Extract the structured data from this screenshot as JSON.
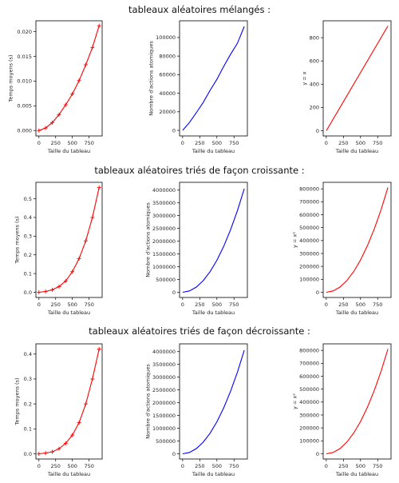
{
  "colors": {
    "red": "#ff0000",
    "blue": "#0000ff",
    "axis": "#000000",
    "text": "#222222"
  },
  "rows": [
    {
      "title": "tableaux aléatoires mélangés :"
    },
    {
      "title": "tableaux aléatoires triés de façon croissante :"
    },
    {
      "title": "tableaux aléatoires triés de façon décroissante :"
    }
  ],
  "chart_data": [
    {
      "type": "line",
      "row": 0,
      "col": 0,
      "xlabel": "Taille du tableau",
      "ylabel": "Temps moyens (s)",
      "xlim": [
        -45,
        945
      ],
      "ylim": [
        -0.0011,
        0.0222
      ],
      "xticks": [
        0,
        250,
        500,
        750
      ],
      "xticklabels": [
        "0",
        "250",
        "500",
        "750"
      ],
      "yticks": [
        0,
        0.005,
        0.01,
        0.015,
        0.02
      ],
      "yticklabels": [
        "0.000",
        "0.005",
        "0.010",
        "0.015",
        "0.020"
      ],
      "series": [
        {
          "color": "#ff0000",
          "marker": "+",
          "x": [
            0,
            100,
            200,
            300,
            400,
            500,
            600,
            700,
            800,
            900
          ],
          "y": [
            0.0,
            0.0005,
            0.0016,
            0.0032,
            0.0052,
            0.0074,
            0.0101,
            0.0133,
            0.0168,
            0.0212
          ]
        }
      ]
    },
    {
      "type": "line",
      "row": 0,
      "col": 1,
      "xlabel": "Taille du tableau",
      "ylabel": "Nombre d'actions atomiques",
      "xlim": [
        -45,
        945
      ],
      "ylim": [
        -6000,
        118000
      ],
      "xticks": [
        0,
        250,
        500,
        750
      ],
      "xticklabels": [
        "0",
        "250",
        "500",
        "750"
      ],
      "yticks": [
        0,
        20000,
        40000,
        60000,
        80000,
        100000
      ],
      "yticklabels": [
        "0",
        "20000",
        "40000",
        "60000",
        "80000",
        "100000"
      ],
      "series": [
        {
          "color": "#0000ff",
          "marker": "",
          "x": [
            0,
            100,
            200,
            300,
            400,
            500,
            600,
            700,
            800,
            900
          ],
          "y": [
            0,
            8500,
            19000,
            30000,
            43000,
            55000,
            69000,
            82000,
            94000,
            112000
          ]
        }
      ]
    },
    {
      "type": "line",
      "row": 0,
      "col": 2,
      "xlabel": "Taille du tableau",
      "ylabel": "y = x",
      "xlim": [
        -45,
        945
      ],
      "ylim": [
        -45,
        945
      ],
      "xticks": [
        0,
        250,
        500,
        750
      ],
      "xticklabels": [
        "0",
        "250",
        "500",
        "750"
      ],
      "yticks": [
        0,
        200,
        400,
        600,
        800
      ],
      "yticklabels": [
        "0",
        "200",
        "400",
        "600",
        "800"
      ],
      "series": [
        {
          "color": "#ff0000",
          "marker": "",
          "x": [
            0,
            900
          ],
          "y": [
            0,
            900
          ]
        }
      ]
    },
    {
      "type": "line",
      "row": 1,
      "col": 0,
      "xlabel": "Taille du tableau",
      "ylabel": "Temps moyens (s)",
      "xlim": [
        -45,
        945
      ],
      "ylim": [
        -0.028,
        0.588
      ],
      "xticks": [
        0,
        250,
        500,
        750
      ],
      "xticklabels": [
        "0",
        "250",
        "500",
        "750"
      ],
      "yticks": [
        0,
        0.1,
        0.2,
        0.3,
        0.4,
        0.5
      ],
      "yticklabels": [
        "0.0",
        "0.1",
        "0.2",
        "0.3",
        "0.4",
        "0.5"
      ],
      "series": [
        {
          "color": "#ff0000",
          "marker": "+",
          "x": [
            0,
            100,
            200,
            300,
            400,
            500,
            600,
            700,
            800,
            900
          ],
          "y": [
            0.0,
            0.004,
            0.013,
            0.03,
            0.06,
            0.11,
            0.18,
            0.275,
            0.4,
            0.56
          ]
        }
      ]
    },
    {
      "type": "line",
      "row": 1,
      "col": 1,
      "xlabel": "Taille du tableau",
      "ylabel": "Nombre d'actions atomiques",
      "xlim": [
        -45,
        945
      ],
      "ylim": [
        -205000,
        4305000
      ],
      "xticks": [
        0,
        250,
        500,
        750
      ],
      "xticklabels": [
        "0",
        "250",
        "500",
        "750"
      ],
      "yticks": [
        0,
        500000,
        1000000,
        1500000,
        2000000,
        2500000,
        3000000,
        3500000,
        4000000
      ],
      "yticklabels": [
        "0",
        "500000",
        "1000000",
        "1500000",
        "2000000",
        "2500000",
        "3000000",
        "3500000",
        "4000000"
      ],
      "series": [
        {
          "color": "#0000ff",
          "marker": "",
          "x": [
            0,
            100,
            200,
            300,
            400,
            500,
            600,
            700,
            800,
            900
          ],
          "y": [
            0,
            50500,
            201000,
            451500,
            802000,
            1252500,
            1803000,
            2453500,
            3204000,
            4054500
          ]
        }
      ]
    },
    {
      "type": "line",
      "row": 1,
      "col": 2,
      "xlabel": "Taille du tableau",
      "ylabel": "y = x²",
      "xlim": [
        -45,
        945
      ],
      "ylim": [
        -40500,
        850500
      ],
      "xticks": [
        0,
        250,
        500,
        750
      ],
      "xticklabels": [
        "0",
        "250",
        "500",
        "750"
      ],
      "yticks": [
        0,
        100000,
        200000,
        300000,
        400000,
        500000,
        600000,
        700000,
        800000
      ],
      "yticklabels": [
        "0",
        "100000",
        "200000",
        "300000",
        "400000",
        "500000",
        "600000",
        "700000",
        "800000"
      ],
      "series": [
        {
          "color": "#ff0000",
          "marker": "",
          "x": [
            0,
            100,
            200,
            300,
            400,
            500,
            600,
            700,
            800,
            900
          ],
          "y": [
            0,
            10000,
            40000,
            90000,
            160000,
            250000,
            360000,
            490000,
            640000,
            810000
          ]
        }
      ]
    },
    {
      "type": "line",
      "row": 2,
      "col": 0,
      "xlabel": "Taille du tableau",
      "ylabel": "Temps moyens (s)",
      "xlim": [
        -45,
        945
      ],
      "ylim": [
        -0.021,
        0.441
      ],
      "xticks": [
        0,
        250,
        500,
        750
      ],
      "xticklabels": [
        "0",
        "250",
        "500",
        "750"
      ],
      "yticks": [
        0,
        0.1,
        0.2,
        0.3,
        0.4
      ],
      "yticklabels": [
        "0.0",
        "0.1",
        "0.2",
        "0.3",
        "0.4"
      ],
      "series": [
        {
          "color": "#ff0000",
          "marker": "+",
          "x": [
            0,
            100,
            200,
            300,
            400,
            500,
            600,
            700,
            800,
            900
          ],
          "y": [
            0.0,
            0.003,
            0.008,
            0.02,
            0.042,
            0.075,
            0.125,
            0.2,
            0.3,
            0.42
          ]
        }
      ]
    },
    {
      "type": "line",
      "row": 2,
      "col": 1,
      "xlabel": "Taille du tableau",
      "ylabel": "Nombre d'actions atomiques",
      "xlim": [
        -45,
        945
      ],
      "ylim": [
        -205000,
        4305000
      ],
      "xticks": [
        0,
        250,
        500,
        750
      ],
      "xticklabels": [
        "0",
        "250",
        "500",
        "750"
      ],
      "yticks": [
        0,
        500000,
        1000000,
        1500000,
        2000000,
        2500000,
        3000000,
        3500000,
        4000000
      ],
      "yticklabels": [
        "0",
        "500000",
        "1000000",
        "1500000",
        "2000000",
        "2500000",
        "3000000",
        "3500000",
        "4000000"
      ],
      "series": [
        {
          "color": "#0000ff",
          "marker": "",
          "x": [
            0,
            100,
            200,
            300,
            400,
            500,
            600,
            700,
            800,
            900
          ],
          "y": [
            0,
            50500,
            201000,
            451500,
            802000,
            1252500,
            1803000,
            2453500,
            3204000,
            4054500
          ]
        }
      ]
    },
    {
      "type": "line",
      "row": 2,
      "col": 2,
      "xlabel": "Taille du tableau",
      "ylabel": "y = x²",
      "xlim": [
        -45,
        945
      ],
      "ylim": [
        -40500,
        850500
      ],
      "xticks": [
        0,
        250,
        500,
        750
      ],
      "xticklabels": [
        "0",
        "250",
        "500",
        "750"
      ],
      "yticks": [
        0,
        100000,
        200000,
        300000,
        400000,
        500000,
        600000,
        700000,
        800000
      ],
      "yticklabels": [
        "0",
        "100000",
        "200000",
        "300000",
        "400000",
        "500000",
        "600000",
        "700000",
        "800000"
      ],
      "series": [
        {
          "color": "#ff0000",
          "marker": "",
          "x": [
            0,
            100,
            200,
            300,
            400,
            500,
            600,
            700,
            800,
            900
          ],
          "y": [
            0,
            10000,
            40000,
            90000,
            160000,
            250000,
            360000,
            490000,
            640000,
            810000
          ]
        }
      ]
    }
  ]
}
